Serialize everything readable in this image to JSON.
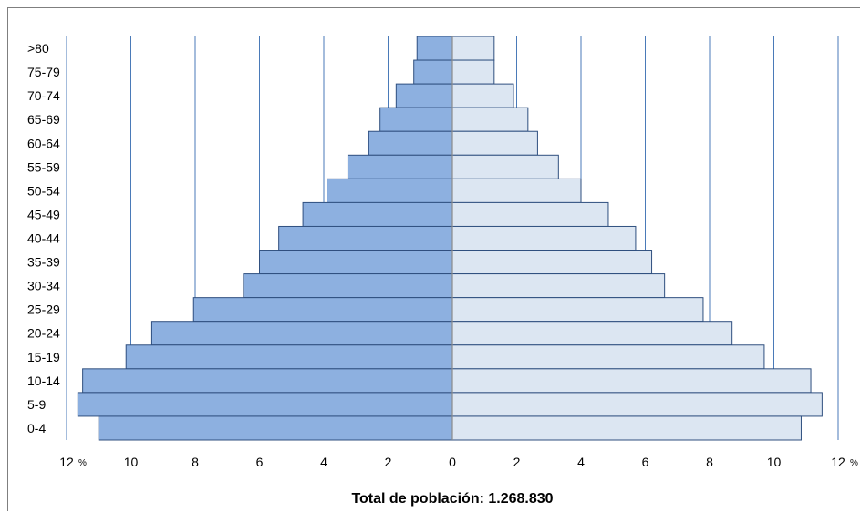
{
  "chart_data": {
    "type": "bar",
    "orientation": "horizontal",
    "subtype": "population-pyramid",
    "title": "Total de población: 1.268.830",
    "categories": [
      ">80",
      "75-79",
      "70-74",
      "65-69",
      "60-64",
      "55-59",
      "50-54",
      "45-49",
      "40-44",
      "35-39",
      "30-34",
      "25-29",
      "20-24",
      "15-19",
      "10-14",
      "5-9",
      "0-4"
    ],
    "series": [
      {
        "values": [
          1.1,
          1.2,
          1.75,
          2.25,
          2.6,
          3.25,
          3.9,
          4.65,
          5.4,
          6.0,
          6.5,
          8.05,
          9.35,
          10.15,
          11.5,
          11.65,
          11.0
        ],
        "color": "#8db0e0",
        "side": "left"
      },
      {
        "values": [
          1.3,
          1.3,
          1.9,
          2.35,
          2.65,
          3.3,
          4.0,
          4.85,
          5.7,
          6.2,
          6.6,
          7.8,
          8.7,
          9.7,
          11.15,
          11.5,
          10.85
        ],
        "color": "#dce6f2",
        "side": "right"
      }
    ],
    "xlim": [
      -12,
      12
    ],
    "xticks": [
      {
        "value": -12,
        "label": "12"
      },
      {
        "value": -10,
        "label": "10"
      },
      {
        "value": -8,
        "label": "8"
      },
      {
        "value": -6,
        "label": "6"
      },
      {
        "value": -4,
        "label": "4"
      },
      {
        "value": -2,
        "label": "2"
      },
      {
        "value": 0,
        "label": "0"
      },
      {
        "value": 2,
        "label": "2"
      },
      {
        "value": 4,
        "label": "4"
      },
      {
        "value": 6,
        "label": "6"
      },
      {
        "value": 8,
        "label": "8"
      },
      {
        "value": 10,
        "label": "10"
      },
      {
        "value": 12,
        "label": "12"
      }
    ],
    "unit_label": "%",
    "grid": "vertical",
    "gridline_color": "#4a7ab8",
    "bar_edge_color": "#2f4f7f",
    "center_line_color": "#8a8a8a"
  }
}
